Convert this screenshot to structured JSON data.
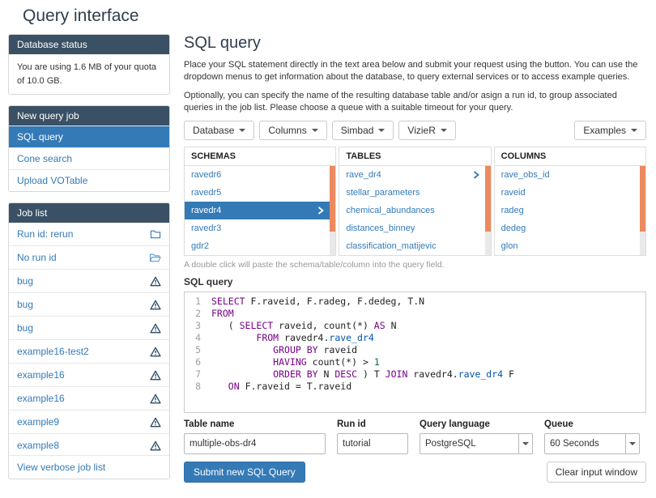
{
  "page": {
    "title": "Query interface"
  },
  "colors": {
    "accent": "#337ab7",
    "panel_header": "#3a5064",
    "scrollbar_thumb": "#ec8a5f"
  },
  "sidebar": {
    "database_status": {
      "title": "Database status",
      "text": "You are using 1.6 MB of your quota of 10.0 GB."
    },
    "new_query_job": {
      "title": "New query job",
      "items": [
        {
          "label": "SQL query",
          "active": true
        },
        {
          "label": "Cone search",
          "active": false
        },
        {
          "label": "Upload VOTable",
          "active": false
        }
      ]
    },
    "job_list": {
      "title": "Job list",
      "items": [
        {
          "label": "Run id: rerun",
          "icon": "folder-closed-icon"
        },
        {
          "label": "No run id",
          "icon": "folder-open-icon"
        },
        {
          "label": "bug",
          "icon": "warning-icon"
        },
        {
          "label": "bug",
          "icon": "warning-icon"
        },
        {
          "label": "bug",
          "icon": "warning-icon"
        },
        {
          "label": "example16-test2",
          "icon": "warning-icon"
        },
        {
          "label": "example16",
          "icon": "warning-icon"
        },
        {
          "label": "example16",
          "icon": "warning-icon"
        },
        {
          "label": "example9",
          "icon": "warning-icon"
        },
        {
          "label": "example8",
          "icon": "warning-icon"
        }
      ],
      "footer_link": "View verbose job list"
    }
  },
  "main": {
    "title": "SQL query",
    "intro1": "Place your SQL statement directly in the text area below and submit your request using the button. You can use the dropdown menus to get information about the database, to query external services or to access example queries.",
    "intro2": "Optionally, you can specify the name of the resulting database table and/or asign a run id, to group associated queries in the job list. Please choose a queue with a suitable timeout for your query.",
    "toolbar": {
      "buttons": [
        {
          "label": "Database"
        },
        {
          "label": "Columns"
        },
        {
          "label": "Simbad"
        },
        {
          "label": "VizieR"
        }
      ],
      "examples_label": "Examples"
    },
    "browser": {
      "columns": [
        {
          "header": "SCHEMAS",
          "items": [
            {
              "label": "ravedr6"
            },
            {
              "label": "ravedr5"
            },
            {
              "label": "ravedr4",
              "active": true,
              "chevron": true
            },
            {
              "label": "ravedr3"
            },
            {
              "label": "gdr2"
            }
          ]
        },
        {
          "header": "TABLES",
          "items": [
            {
              "label": "rave_dr4",
              "chevron": true
            },
            {
              "label": "stellar_parameters"
            },
            {
              "label": "chemical_abundances"
            },
            {
              "label": "distances_binney"
            },
            {
              "label": "classification_matijevic"
            }
          ]
        },
        {
          "header": "COLUMNS",
          "items": [
            {
              "label": "rave_obs_id"
            },
            {
              "label": "raveid"
            },
            {
              "label": "radeg"
            },
            {
              "label": "dedeg"
            },
            {
              "label": "glon"
            }
          ]
        }
      ]
    },
    "hint": "A double click will paste the schema/table/column into the query field.",
    "editor": {
      "label": "SQL query",
      "lines": [
        [
          [
            "k",
            "SELECT"
          ],
          [
            "p",
            " F.raveid, F.radeg, F.dedeg, T.N"
          ]
        ],
        [
          [
            "k",
            "FROM"
          ]
        ],
        [
          [
            "p",
            "   ( "
          ],
          [
            "k",
            "SELECT"
          ],
          [
            "p",
            " raveid, count(*) "
          ],
          [
            "k",
            "AS"
          ],
          [
            "p",
            " N"
          ]
        ],
        [
          [
            "p",
            "        "
          ],
          [
            "k",
            "FROM"
          ],
          [
            "p",
            " ravedr4."
          ],
          [
            "t",
            "rave_dr4"
          ]
        ],
        [
          [
            "p",
            "           "
          ],
          [
            "k",
            "GROUP BY"
          ],
          [
            "p",
            " raveid"
          ]
        ],
        [
          [
            "p",
            "           "
          ],
          [
            "k",
            "HAVING"
          ],
          [
            "p",
            " count(*) > "
          ],
          [
            "n",
            "1"
          ]
        ],
        [
          [
            "p",
            "           "
          ],
          [
            "k",
            "ORDER BY"
          ],
          [
            "p",
            " N "
          ],
          [
            "k",
            "DESC"
          ],
          [
            "p",
            " ) T "
          ],
          [
            "k",
            "JOIN"
          ],
          [
            "p",
            " ravedr4."
          ],
          [
            "t",
            "rave_dr4"
          ],
          [
            "p",
            " F"
          ]
        ],
        [
          [
            "p",
            "   "
          ],
          [
            "k",
            "ON"
          ],
          [
            "p",
            " F.raveid = T.raveid"
          ]
        ]
      ]
    },
    "form": {
      "table_name": {
        "label": "Table name",
        "value": "multiple-obs-dr4"
      },
      "run_id": {
        "label": "Run id",
        "value": "tutorial"
      },
      "query_language": {
        "label": "Query language",
        "value": "PostgreSQL"
      },
      "queue": {
        "label": "Queue",
        "value": "60 Seconds"
      }
    },
    "actions": {
      "submit": "Submit new SQL Query",
      "clear": "Clear input window"
    }
  }
}
